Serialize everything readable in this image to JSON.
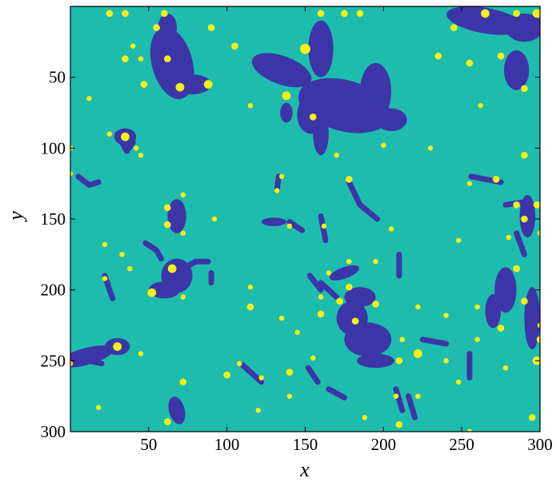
{
  "chart_data": {
    "type": "heatmap",
    "title": "",
    "xlabel": "x",
    "ylabel": "y",
    "xlim": [
      0,
      300
    ],
    "ylim": [
      0,
      300
    ],
    "y_reversed": true,
    "x_ticks": [
      50,
      100,
      150,
      200,
      250,
      300
    ],
    "y_ticks": [
      50,
      100,
      150,
      200,
      250,
      300
    ],
    "colors": {
      "background": "#1ebcad",
      "domain": "#3c35a7",
      "particle": "#f5ef18"
    },
    "series": [
      {
        "role": "domains",
        "blobs": [
          {
            "cx": 65,
            "cy": 40,
            "rx": 13,
            "ry": 26,
            "rot": -15
          },
          {
            "cx": 78,
            "cy": 55,
            "rx": 12,
            "ry": 7,
            "rot": 0
          },
          {
            "cx": 62,
            "cy": 15,
            "rx": 6,
            "ry": 10,
            "rot": 0
          },
          {
            "cx": 135,
            "cy": 45,
            "rx": 20,
            "ry": 10,
            "rot": 20
          },
          {
            "cx": 160,
            "cy": 30,
            "rx": 8,
            "ry": 20,
            "rot": 0
          },
          {
            "cx": 175,
            "cy": 70,
            "rx": 30,
            "ry": 18,
            "rot": 15
          },
          {
            "cx": 195,
            "cy": 60,
            "rx": 10,
            "ry": 20,
            "rot": 0
          },
          {
            "cx": 205,
            "cy": 80,
            "rx": 10,
            "ry": 8,
            "rot": 0
          },
          {
            "cx": 155,
            "cy": 75,
            "rx": 10,
            "ry": 15,
            "rot": 10
          },
          {
            "cx": 160,
            "cy": 90,
            "rx": 5,
            "ry": 15,
            "rot": 0
          },
          {
            "cx": 265,
            "cy": 10,
            "rx": 25,
            "ry": 9,
            "rot": 10
          },
          {
            "cx": 290,
            "cy": 15,
            "rx": 12,
            "ry": 10,
            "rot": 0
          },
          {
            "cx": 285,
            "cy": 45,
            "rx": 8,
            "ry": 14,
            "rot": 0
          },
          {
            "cx": 35,
            "cy": 92,
            "rx": 7,
            "ry": 6,
            "rot": 0
          },
          {
            "cx": 68,
            "cy": 148,
            "rx": 6,
            "ry": 12,
            "rot": 0
          },
          {
            "cx": 68,
            "cy": 190,
            "rx": 10,
            "ry": 12,
            "rot": 0
          },
          {
            "cx": 60,
            "cy": 200,
            "rx": 10,
            "ry": 6,
            "rot": 0
          },
          {
            "cx": 130,
            "cy": 152,
            "rx": 8,
            "ry": 3,
            "rot": 0
          },
          {
            "cx": 185,
            "cy": 205,
            "rx": 10,
            "ry": 7,
            "rot": 0
          },
          {
            "cx": 190,
            "cy": 235,
            "rx": 15,
            "ry": 12,
            "rot": 0
          },
          {
            "cx": 180,
            "cy": 220,
            "rx": 10,
            "ry": 12,
            "rot": 0
          },
          {
            "cx": 195,
            "cy": 250,
            "rx": 12,
            "ry": 5,
            "rot": 0
          },
          {
            "cx": 175,
            "cy": 188,
            "rx": 10,
            "ry": 4,
            "rot": -20
          },
          {
            "cx": 10,
            "cy": 247,
            "rx": 18,
            "ry": 6,
            "rot": -15
          },
          {
            "cx": 30,
            "cy": 240,
            "rx": 8,
            "ry": 6,
            "rot": 0
          },
          {
            "cx": 68,
            "cy": 285,
            "rx": 5,
            "ry": 10,
            "rot": -15
          },
          {
            "cx": 278,
            "cy": 200,
            "rx": 7,
            "ry": 16,
            "rot": 0
          },
          {
            "cx": 270,
            "cy": 215,
            "rx": 5,
            "ry": 12,
            "rot": 0
          },
          {
            "cx": 295,
            "cy": 220,
            "rx": 5,
            "ry": 22,
            "rot": 0
          },
          {
            "cx": 292,
            "cy": 148,
            "rx": 5,
            "ry": 15,
            "rot": 0
          },
          {
            "cx": 138,
            "cy": 75,
            "rx": 4,
            "ry": 7,
            "rot": 0
          }
        ],
        "strokes": [
          [
            [
              30,
              90
            ],
            [
              36,
              102
            ],
            [
              40,
              96
            ]
          ],
          [
            [
              5,
              120
            ],
            [
              12,
              126
            ],
            [
              18,
              124
            ]
          ],
          [
            [
              48,
              167
            ],
            [
              55,
              172
            ],
            [
              58,
              178
            ]
          ],
          [
            [
              22,
              190
            ],
            [
              25,
              200
            ],
            [
              27,
              206
            ]
          ],
          [
            [
              72,
              185
            ],
            [
              80,
              180
            ],
            [
              88,
              180
            ]
          ],
          [
            [
              90,
              188
            ],
            [
              90,
              195
            ]
          ],
          [
            [
              140,
              152
            ],
            [
              148,
              158
            ]
          ],
          [
            [
              160,
              148
            ],
            [
              163,
              165
            ]
          ],
          [
            [
              133,
              120
            ],
            [
              132,
              130
            ]
          ],
          [
            [
              178,
              124
            ],
            [
              185,
              140
            ],
            [
              196,
              150
            ]
          ],
          [
            [
              153,
              190
            ],
            [
              160,
              200
            ]
          ],
          [
            [
              160,
              195
            ],
            [
              170,
              205
            ]
          ],
          [
            [
              210,
              175
            ],
            [
              210,
              190
            ]
          ],
          [
            [
              225,
              235
            ],
            [
              240,
              238
            ]
          ],
          [
            [
              256,
              120
            ],
            [
              275,
              124
            ]
          ],
          [
            [
              278,
              140
            ],
            [
              290,
              138
            ]
          ],
          [
            [
              285,
              160
            ],
            [
              290,
              175
            ]
          ],
          [
            [
              110,
              253
            ],
            [
              122,
              265
            ]
          ],
          [
            [
              152,
              255
            ],
            [
              158,
              265
            ]
          ],
          [
            [
              165,
              270
            ],
            [
              175,
              276
            ]
          ],
          [
            [
              208,
              270
            ],
            [
              212,
              285
            ]
          ],
          [
            [
              216,
              275
            ],
            [
              220,
              290
            ]
          ],
          [
            [
              255,
              245
            ],
            [
              255,
              262
            ]
          ],
          [
            [
              3,
              248
            ],
            [
              20,
              252
            ]
          ]
        ]
      },
      {
        "role": "particles",
        "points": [
          {
            "x": 25,
            "y": 5,
            "s": 4
          },
          {
            "x": 35,
            "y": 5,
            "s": 4
          },
          {
            "x": 60,
            "y": 5,
            "s": 4
          },
          {
            "x": 160,
            "y": 5,
            "s": 4
          },
          {
            "x": 175,
            "y": 5,
            "s": 4
          },
          {
            "x": 185,
            "y": 5,
            "s": 4
          },
          {
            "x": 265,
            "y": 5,
            "s": 5
          },
          {
            "x": 285,
            "y": 5,
            "s": 4
          },
          {
            "x": 298,
            "y": 5,
            "s": 5
          },
          {
            "x": 55,
            "y": 15,
            "s": 4
          },
          {
            "x": 90,
            "y": 15,
            "s": 4
          },
          {
            "x": 245,
            "y": 15,
            "s": 4
          },
          {
            "x": 40,
            "y": 28,
            "s": 3
          },
          {
            "x": 105,
            "y": 28,
            "s": 4
          },
          {
            "x": 150,
            "y": 30,
            "s": 6
          },
          {
            "x": 235,
            "y": 35,
            "s": 4
          },
          {
            "x": 275,
            "y": 35,
            "s": 4
          },
          {
            "x": 35,
            "y": 37,
            "s": 4
          },
          {
            "x": 45,
            "y": 37,
            "s": 3
          },
          {
            "x": 62,
            "y": 37,
            "s": 4
          },
          {
            "x": 255,
            "y": 40,
            "s": 4
          },
          {
            "x": 47,
            "y": 55,
            "s": 4
          },
          {
            "x": 70,
            "y": 57,
            "s": 5
          },
          {
            "x": 88,
            "y": 55,
            "s": 5
          },
          {
            "x": 290,
            "y": 58,
            "s": 4
          },
          {
            "x": 12,
            "y": 65,
            "s": 3
          },
          {
            "x": 138,
            "y": 63,
            "s": 5
          },
          {
            "x": 115,
            "y": 70,
            "s": 3
          },
          {
            "x": 262,
            "y": 70,
            "s": 3
          },
          {
            "x": 155,
            "y": 78,
            "s": 4
          },
          {
            "x": 35,
            "y": 92,
            "s": 5
          },
          {
            "x": 25,
            "y": 90,
            "s": 3
          },
          {
            "x": 42,
            "y": 100,
            "s": 3
          },
          {
            "x": 200,
            "y": 98,
            "s": 3
          },
          {
            "x": 170,
            "y": 105,
            "s": 3
          },
          {
            "x": 0,
            "y": 100,
            "s": 3
          },
          {
            "x": 45,
            "y": 105,
            "s": 3
          },
          {
            "x": 230,
            "y": 100,
            "s": 3
          },
          {
            "x": 290,
            "y": 105,
            "s": 4
          },
          {
            "x": 0,
            "y": 118,
            "s": 3
          },
          {
            "x": 135,
            "y": 120,
            "s": 3
          },
          {
            "x": 178,
            "y": 122,
            "s": 4
          },
          {
            "x": 272,
            "y": 122,
            "s": 4
          },
          {
            "x": 255,
            "y": 125,
            "s": 3
          },
          {
            "x": 132,
            "y": 130,
            "s": 3
          },
          {
            "x": 72,
            "y": 133,
            "s": 3
          },
          {
            "x": 62,
            "y": 142,
            "s": 4
          },
          {
            "x": 285,
            "y": 140,
            "s": 4
          },
          {
            "x": 298,
            "y": 140,
            "s": 4
          },
          {
            "x": 92,
            "y": 150,
            "s": 3
          },
          {
            "x": 62,
            "y": 154,
            "s": 4
          },
          {
            "x": 140,
            "y": 155,
            "s": 3
          },
          {
            "x": 162,
            "y": 155,
            "s": 3
          },
          {
            "x": 290,
            "y": 150,
            "s": 4
          },
          {
            "x": 205,
            "y": 157,
            "s": 3
          },
          {
            "x": 72,
            "y": 160,
            "s": 3
          },
          {
            "x": 300,
            "y": 160,
            "s": 3
          },
          {
            "x": 280,
            "y": 163,
            "s": 3
          },
          {
            "x": 22,
            "y": 168,
            "s": 3
          },
          {
            "x": 248,
            "y": 165,
            "s": 3
          },
          {
            "x": 33,
            "y": 175,
            "s": 3
          },
          {
            "x": 178,
            "y": 180,
            "s": 3
          },
          {
            "x": 195,
            "y": 180,
            "s": 3
          },
          {
            "x": 38,
            "y": 185,
            "s": 3
          },
          {
            "x": 165,
            "y": 188,
            "s": 3
          },
          {
            "x": 65,
            "y": 185,
            "s": 5
          },
          {
            "x": 285,
            "y": 185,
            "s": 4
          },
          {
            "x": 22,
            "y": 192,
            "s": 3
          },
          {
            "x": 178,
            "y": 198,
            "s": 4
          },
          {
            "x": 115,
            "y": 198,
            "s": 3
          },
          {
            "x": 52,
            "y": 202,
            "s": 5
          },
          {
            "x": 72,
            "y": 205,
            "s": 3
          },
          {
            "x": 160,
            "y": 205,
            "s": 3
          },
          {
            "x": 172,
            "y": 208,
            "s": 4
          },
          {
            "x": 195,
            "y": 210,
            "s": 4
          },
          {
            "x": 290,
            "y": 208,
            "s": 4
          },
          {
            "x": 115,
            "y": 212,
            "s": 4
          },
          {
            "x": 160,
            "y": 217,
            "s": 4
          },
          {
            "x": 135,
            "y": 220,
            "s": 3
          },
          {
            "x": 222,
            "y": 212,
            "s": 3
          },
          {
            "x": 260,
            "y": 212,
            "s": 3
          },
          {
            "x": 182,
            "y": 222,
            "s": 4
          },
          {
            "x": 240,
            "y": 218,
            "s": 3
          },
          {
            "x": 275,
            "y": 227,
            "s": 4
          },
          {
            "x": 300,
            "y": 225,
            "s": 3
          },
          {
            "x": 145,
            "y": 230,
            "s": 3
          },
          {
            "x": 260,
            "y": 235,
            "s": 3
          },
          {
            "x": 30,
            "y": 240,
            "s": 5
          },
          {
            "x": 45,
            "y": 245,
            "s": 3
          },
          {
            "x": 212,
            "y": 235,
            "s": 3
          },
          {
            "x": 300,
            "y": 235,
            "s": 4
          },
          {
            "x": 222,
            "y": 245,
            "s": 5
          },
          {
            "x": 0,
            "y": 252,
            "s": 3
          },
          {
            "x": 108,
            "y": 252,
            "s": 3
          },
          {
            "x": 155,
            "y": 248,
            "s": 3
          },
          {
            "x": 210,
            "y": 250,
            "s": 4
          },
          {
            "x": 240,
            "y": 250,
            "s": 3
          },
          {
            "x": 298,
            "y": 250,
            "s": 5
          },
          {
            "x": 278,
            "y": 255,
            "s": 3
          },
          {
            "x": 140,
            "y": 258,
            "s": 4
          },
          {
            "x": 100,
            "y": 260,
            "s": 4
          },
          {
            "x": 122,
            "y": 262,
            "s": 3
          },
          {
            "x": 72,
            "y": 265,
            "s": 4
          },
          {
            "x": 248,
            "y": 265,
            "s": 3
          },
          {
            "x": 140,
            "y": 275,
            "s": 3
          },
          {
            "x": 208,
            "y": 275,
            "s": 3
          },
          {
            "x": 222,
            "y": 275,
            "s": 3
          },
          {
            "x": 18,
            "y": 283,
            "s": 3
          },
          {
            "x": 120,
            "y": 285,
            "s": 3
          },
          {
            "x": 188,
            "y": 290,
            "s": 3
          },
          {
            "x": 295,
            "y": 290,
            "s": 4
          },
          {
            "x": 62,
            "y": 293,
            "s": 4
          },
          {
            "x": 210,
            "y": 295,
            "s": 4
          },
          {
            "x": 255,
            "y": 300,
            "s": 3
          }
        ]
      }
    ]
  }
}
